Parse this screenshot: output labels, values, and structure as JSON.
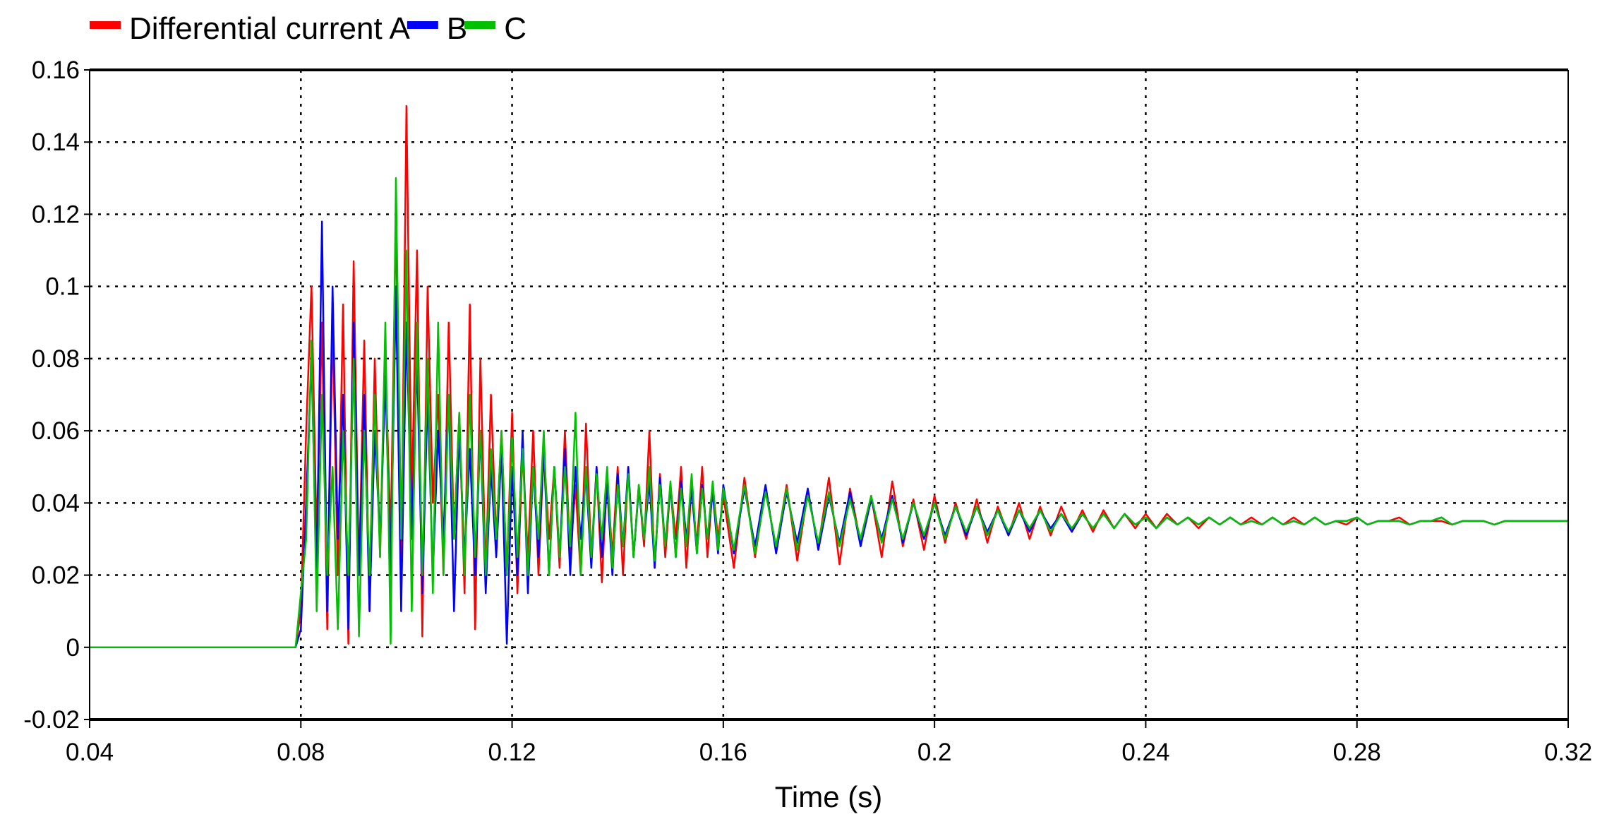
{
  "chart_data": {
    "type": "line",
    "title": "",
    "xlabel": "Time (s)",
    "ylabel": "",
    "xlim": [
      0.04,
      0.32
    ],
    "ylim": [
      -0.02,
      0.16
    ],
    "grid": true,
    "legend_placement": "top-left",
    "xticks": [
      "0.04",
      "0.08",
      "0.12",
      "0.16",
      "0.2",
      "0.24",
      "0.28",
      "0.32"
    ],
    "yticks": [
      "-0.02",
      "0",
      "0.02",
      "0.04",
      "0.06",
      "0.08",
      "0.1",
      "0.12",
      "0.14",
      "0.16"
    ],
    "x": [
      0.04,
      0.079,
      0.08,
      0.081,
      0.082,
      0.083,
      0.084,
      0.085,
      0.086,
      0.087,
      0.088,
      0.089,
      0.09,
      0.091,
      0.092,
      0.093,
      0.094,
      0.095,
      0.096,
      0.097,
      0.098,
      0.099,
      0.1,
      0.101,
      0.102,
      0.103,
      0.104,
      0.105,
      0.106,
      0.107,
      0.108,
      0.109,
      0.11,
      0.111,
      0.112,
      0.113,
      0.114,
      0.115,
      0.116,
      0.117,
      0.118,
      0.119,
      0.12,
      0.121,
      0.122,
      0.123,
      0.124,
      0.125,
      0.126,
      0.127,
      0.128,
      0.129,
      0.13,
      0.131,
      0.132,
      0.133,
      0.134,
      0.135,
      0.136,
      0.137,
      0.138,
      0.139,
      0.14,
      0.141,
      0.142,
      0.143,
      0.144,
      0.145,
      0.146,
      0.147,
      0.148,
      0.149,
      0.15,
      0.151,
      0.152,
      0.153,
      0.154,
      0.155,
      0.156,
      0.157,
      0.158,
      0.159,
      0.16,
      0.162,
      0.164,
      0.166,
      0.168,
      0.17,
      0.172,
      0.174,
      0.176,
      0.178,
      0.18,
      0.182,
      0.184,
      0.186,
      0.188,
      0.19,
      0.192,
      0.194,
      0.196,
      0.198,
      0.2,
      0.202,
      0.204,
      0.206,
      0.208,
      0.21,
      0.212,
      0.214,
      0.216,
      0.218,
      0.22,
      0.222,
      0.224,
      0.226,
      0.228,
      0.23,
      0.232,
      0.234,
      0.236,
      0.238,
      0.24,
      0.242,
      0.244,
      0.246,
      0.248,
      0.25,
      0.252,
      0.254,
      0.256,
      0.258,
      0.26,
      0.262,
      0.264,
      0.266,
      0.268,
      0.27,
      0.272,
      0.274,
      0.276,
      0.278,
      0.28,
      0.282,
      0.284,
      0.286,
      0.288,
      0.29,
      0.292,
      0.294,
      0.296,
      0.298,
      0.3,
      0.302,
      0.304,
      0.306,
      0.308,
      0.31,
      0.312,
      0.314,
      0.316,
      0.318,
      0.32
    ],
    "series": [
      {
        "name": "Differential current A",
        "color": "#ff0000",
        "values": [
          0,
          0,
          0.01,
          0.06,
          0.1,
          0.03,
          0.09,
          0.005,
          0.09,
          0.02,
          0.095,
          0.001,
          0.107,
          0.02,
          0.085,
          0.01,
          0.08,
          0.025,
          0.08,
          0.03,
          0.12,
          0.02,
          0.15,
          0.04,
          0.11,
          0.003,
          0.1,
          0.04,
          0.07,
          0.02,
          0.09,
          0.03,
          0.065,
          0.015,
          0.095,
          0.005,
          0.08,
          0.02,
          0.07,
          0.03,
          0.06,
          0.02,
          0.065,
          0.015,
          0.055,
          0.025,
          0.06,
          0.02,
          0.055,
          0.03,
          0.05,
          0.022,
          0.06,
          0.025,
          0.045,
          0.02,
          0.062,
          0.025,
          0.05,
          0.018,
          0.048,
          0.025,
          0.05,
          0.02,
          0.05,
          0.025,
          0.045,
          0.028,
          0.06,
          0.022,
          0.048,
          0.025,
          0.045,
          0.03,
          0.05,
          0.022,
          0.045,
          0.028,
          0.05,
          0.025,
          0.045,
          0.03,
          0.042,
          0.022,
          0.047,
          0.025,
          0.044,
          0.027,
          0.045,
          0.024,
          0.043,
          0.028,
          0.047,
          0.023,
          0.044,
          0.029,
          0.042,
          0.025,
          0.046,
          0.028,
          0.041,
          0.027,
          0.042,
          0.029,
          0.04,
          0.03,
          0.041,
          0.029,
          0.039,
          0.031,
          0.04,
          0.03,
          0.039,
          0.031,
          0.039,
          0.032,
          0.038,
          0.032,
          0.038,
          0.033,
          0.037,
          0.033,
          0.037,
          0.033,
          0.037,
          0.034,
          0.036,
          0.033,
          0.036,
          0.034,
          0.036,
          0.034,
          0.036,
          0.034,
          0.036,
          0.034,
          0.036,
          0.034,
          0.036,
          0.034,
          0.035,
          0.034,
          0.036,
          0.034,
          0.035,
          0.035,
          0.036,
          0.034,
          0.035,
          0.035,
          0.035,
          0.034,
          0.035,
          0.035,
          0.035,
          0.034,
          0.035,
          0.035,
          0.035,
          0.035,
          0.035,
          0.035,
          0.035
        ]
      },
      {
        "name": "B",
        "color": "#0000ff",
        "values": [
          0,
          0,
          0.005,
          0.04,
          0.08,
          0.02,
          0.118,
          0.01,
          0.1,
          0.03,
          0.07,
          0.005,
          0.09,
          0.02,
          0.07,
          0.01,
          0.06,
          0.03,
          0.075,
          0.02,
          0.1,
          0.01,
          0.09,
          0.03,
          0.08,
          0.015,
          0.07,
          0.02,
          0.06,
          0.03,
          0.07,
          0.01,
          0.06,
          0.025,
          0.055,
          0.02,
          0.06,
          0.015,
          0.05,
          0.025,
          0.055,
          0.001,
          0.05,
          0.02,
          0.06,
          0.015,
          0.05,
          0.025,
          0.055,
          0.02,
          0.05,
          0.025,
          0.055,
          0.02,
          0.05,
          0.03,
          0.048,
          0.022,
          0.05,
          0.025,
          0.045,
          0.02,
          0.048,
          0.028,
          0.05,
          0.025,
          0.044,
          0.03,
          0.046,
          0.022,
          0.047,
          0.028,
          0.045,
          0.025,
          0.046,
          0.03,
          0.044,
          0.026,
          0.045,
          0.03,
          0.043,
          0.026,
          0.045,
          0.026,
          0.044,
          0.028,
          0.045,
          0.026,
          0.043,
          0.029,
          0.044,
          0.027,
          0.042,
          0.029,
          0.043,
          0.028,
          0.041,
          0.03,
          0.042,
          0.029,
          0.04,
          0.03,
          0.04,
          0.031,
          0.039,
          0.031,
          0.039,
          0.032,
          0.038,
          0.031,
          0.038,
          0.032,
          0.038,
          0.033,
          0.037,
          0.032,
          0.037,
          0.033,
          0.037,
          0.033,
          0.037,
          0.034,
          0.036,
          0.033,
          0.036,
          0.034,
          0.036,
          0.034,
          0.036,
          0.034,
          0.036,
          0.034,
          0.035,
          0.034,
          0.036,
          0.034,
          0.035,
          0.034,
          0.036,
          0.034,
          0.035,
          0.035,
          0.036,
          0.034,
          0.035,
          0.035,
          0.035,
          0.034,
          0.035,
          0.035,
          0.036,
          0.034,
          0.035,
          0.035,
          0.035,
          0.034,
          0.035,
          0.035,
          0.035,
          0.035,
          0.035,
          0.035,
          0.035
        ]
      },
      {
        "name": "C",
        "color": "#00c000",
        "values": [
          0,
          0,
          0.015,
          0.03,
          0.085,
          0.01,
          0.07,
          0.02,
          0.05,
          0.005,
          0.06,
          0.02,
          0.08,
          0.003,
          0.06,
          0.02,
          0.07,
          0.025,
          0.09,
          0.001,
          0.13,
          0.03,
          0.11,
          0.01,
          0.09,
          0.02,
          0.08,
          0.015,
          0.09,
          0.02,
          0.07,
          0.03,
          0.065,
          0.02,
          0.07,
          0.025,
          0.06,
          0.02,
          0.055,
          0.03,
          0.06,
          0.02,
          0.058,
          0.025,
          0.055,
          0.02,
          0.05,
          0.03,
          0.06,
          0.02,
          0.05,
          0.025,
          0.05,
          0.028,
          0.065,
          0.02,
          0.05,
          0.025,
          0.048,
          0.03,
          0.05,
          0.022,
          0.045,
          0.028,
          0.048,
          0.025,
          0.045,
          0.03,
          0.05,
          0.024,
          0.045,
          0.028,
          0.046,
          0.025,
          0.044,
          0.028,
          0.048,
          0.026,
          0.044,
          0.03,
          0.046,
          0.027,
          0.044,
          0.027,
          0.045,
          0.026,
          0.043,
          0.028,
          0.044,
          0.027,
          0.042,
          0.029,
          0.043,
          0.028,
          0.041,
          0.03,
          0.042,
          0.029,
          0.041,
          0.03,
          0.04,
          0.031,
          0.04,
          0.03,
          0.039,
          0.032,
          0.039,
          0.031,
          0.038,
          0.032,
          0.038,
          0.033,
          0.038,
          0.032,
          0.037,
          0.033,
          0.037,
          0.033,
          0.037,
          0.033,
          0.037,
          0.034,
          0.036,
          0.033,
          0.036,
          0.034,
          0.036,
          0.034,
          0.036,
          0.034,
          0.036,
          0.034,
          0.035,
          0.034,
          0.036,
          0.034,
          0.035,
          0.034,
          0.036,
          0.034,
          0.035,
          0.035,
          0.036,
          0.034,
          0.035,
          0.035,
          0.035,
          0.034,
          0.035,
          0.035,
          0.036,
          0.034,
          0.035,
          0.035,
          0.035,
          0.034,
          0.035,
          0.035,
          0.035,
          0.035,
          0.035,
          0.035,
          0.035
        ]
      }
    ]
  }
}
